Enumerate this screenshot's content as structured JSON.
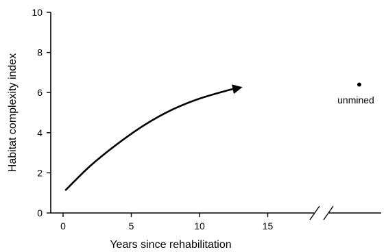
{
  "chart_data": {
    "type": "line",
    "xlabel": "Years since rehabilitation",
    "ylabel": "Habitat complexity index",
    "xlim": [
      -1,
      18
    ],
    "ylim": [
      0,
      10
    ],
    "x_ticks": [
      0,
      5,
      10,
      15
    ],
    "y_ticks": [
      0,
      2,
      4,
      6,
      8,
      10
    ],
    "x_axis_break": true,
    "grid": false,
    "series": [
      {
        "style": "curve-with-arrowhead",
        "color": "#000000",
        "x": [
          0.2,
          2,
          4,
          6,
          8,
          10,
          12,
          13
        ],
        "y": [
          1.15,
          2.35,
          3.45,
          4.4,
          5.15,
          5.7,
          6.1,
          6.25
        ]
      }
    ],
    "points": [
      {
        "label": "unmined",
        "y": 6.4,
        "color": "#000000"
      }
    ],
    "annotations": [
      {
        "text": "unmined"
      }
    ]
  }
}
